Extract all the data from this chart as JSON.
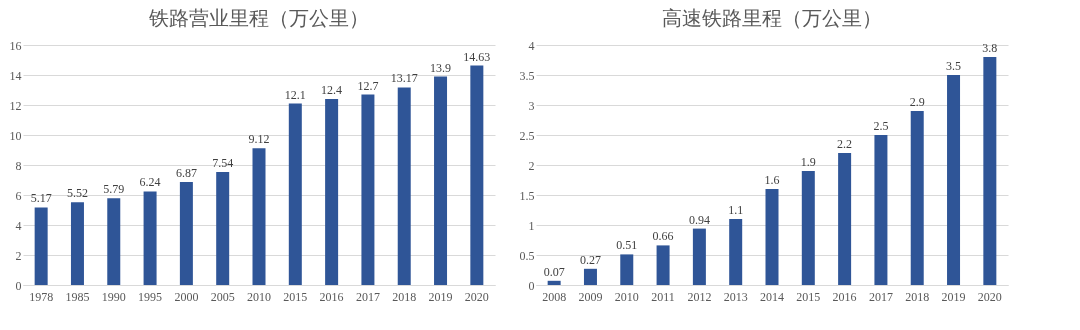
{
  "chart_data": [
    {
      "type": "bar",
      "title": "铁路营业里程（万公里）",
      "categories": [
        "1978",
        "1985",
        "1990",
        "1995",
        "2000",
        "2005",
        "2010",
        "2015",
        "2016",
        "2017",
        "2018",
        "2019",
        "2020"
      ],
      "values": [
        5.17,
        5.52,
        5.79,
        6.24,
        6.87,
        7.54,
        9.12,
        12.1,
        12.4,
        12.7,
        13.17,
        13.9,
        14.63
      ],
      "color": "#2f5597",
      "ylim": [
        0,
        16
      ],
      "yticks": [
        0,
        2,
        4,
        6,
        8,
        10,
        12,
        14,
        16
      ],
      "grid": "y",
      "data_labels": true
    },
    {
      "type": "bar",
      "title": "高速铁路里程（万公里）",
      "categories": [
        "2008",
        "2009",
        "2010",
        "2011",
        "2012",
        "2013",
        "2014",
        "2015",
        "2016",
        "2017",
        "2018",
        "2019",
        "2020"
      ],
      "values": [
        0.07,
        0.27,
        0.51,
        0.66,
        0.94,
        1.1,
        1.6,
        1.9,
        2.2,
        2.5,
        2.9,
        3.5,
        3.8
      ],
      "color": "#2f5597",
      "ylim": [
        0,
        4
      ],
      "yticks": [
        0,
        0.5,
        1,
        1.5,
        2,
        2.5,
        3,
        3.5,
        4
      ],
      "grid": "y",
      "data_labels": true
    }
  ]
}
